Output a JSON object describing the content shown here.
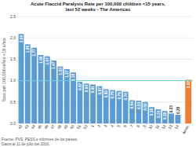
{
  "chart_data": {
    "type": "bar",
    "title": "Acute Flaccid Paralysis Rate per 100,000 children <15 years,\nlast 52 weeks - The Americas",
    "y_label": "Tasa per 100,000 niños <15 años",
    "source": "Fuente: PVS, PESS e informes de los países.\nDatos al 11 de julio del 2016.",
    "categories": [
      "42",
      "43",
      "44",
      "45",
      "46",
      "47",
      "48",
      "49",
      "50",
      "51",
      "52",
      "1",
      "2",
      "3",
      "4",
      "5",
      "6",
      "7",
      "8",
      "9",
      "10",
      "11",
      "12",
      "13",
      "14",
      "Amér."
    ],
    "values": [
      2.09,
      1.85,
      1.77,
      1.6,
      1.57,
      1.47,
      1.33,
      1.27,
      1.19,
      0.97,
      0.93,
      0.91,
      0.87,
      0.8,
      0.78,
      0.76,
      0.74,
      0.54,
      0.53,
      0.5,
      0.38,
      0.33,
      0.29,
      0.23,
      0.2,
      1.02
    ],
    "value_labels": [
      "2.09",
      "1.85",
      "1.77",
      "1.60",
      "1.57",
      "1.47",
      "1.33",
      "1.27",
      "1.19",
      "0.97",
      "0.93",
      "0.91",
      "0.87",
      "0.80",
      "0.78",
      "0.76",
      "0.74",
      "0.54",
      "0.53",
      "0.50",
      "0.38",
      "0.33",
      "0.29",
      "0.23",
      "0.20",
      "1.02"
    ],
    "colors": [
      "#5b9bd5",
      "#5b9bd5",
      "#5b9bd5",
      "#5b9bd5",
      "#5b9bd5",
      "#5b9bd5",
      "#5b9bd5",
      "#5b9bd5",
      "#5b9bd5",
      "#5b9bd5",
      "#5b9bd5",
      "#5b9bd5",
      "#5b9bd5",
      "#5b9bd5",
      "#5b9bd5",
      "#5b9bd5",
      "#5b9bd5",
      "#5b9bd5",
      "#5b9bd5",
      "#5b9bd5",
      "#5b9bd5",
      "#5b9bd5",
      "#5b9bd5",
      "#5b9bd5",
      "#5b9bd5",
      "#ed7d31"
    ],
    "data_labels": true,
    "reference_line": {
      "value": 1.0,
      "color": "#70d0e0"
    },
    "ylim": [
      0,
      2.5
    ],
    "yticks": [
      {
        "value": 0,
        "label": "0.0"
      },
      0.5,
      {
        "value": 1.0,
        "label": "1.0"
      },
      1.5,
      {
        "value": 2.0,
        "label": "2.0"
      },
      2.5
    ],
    "grid": true
  }
}
